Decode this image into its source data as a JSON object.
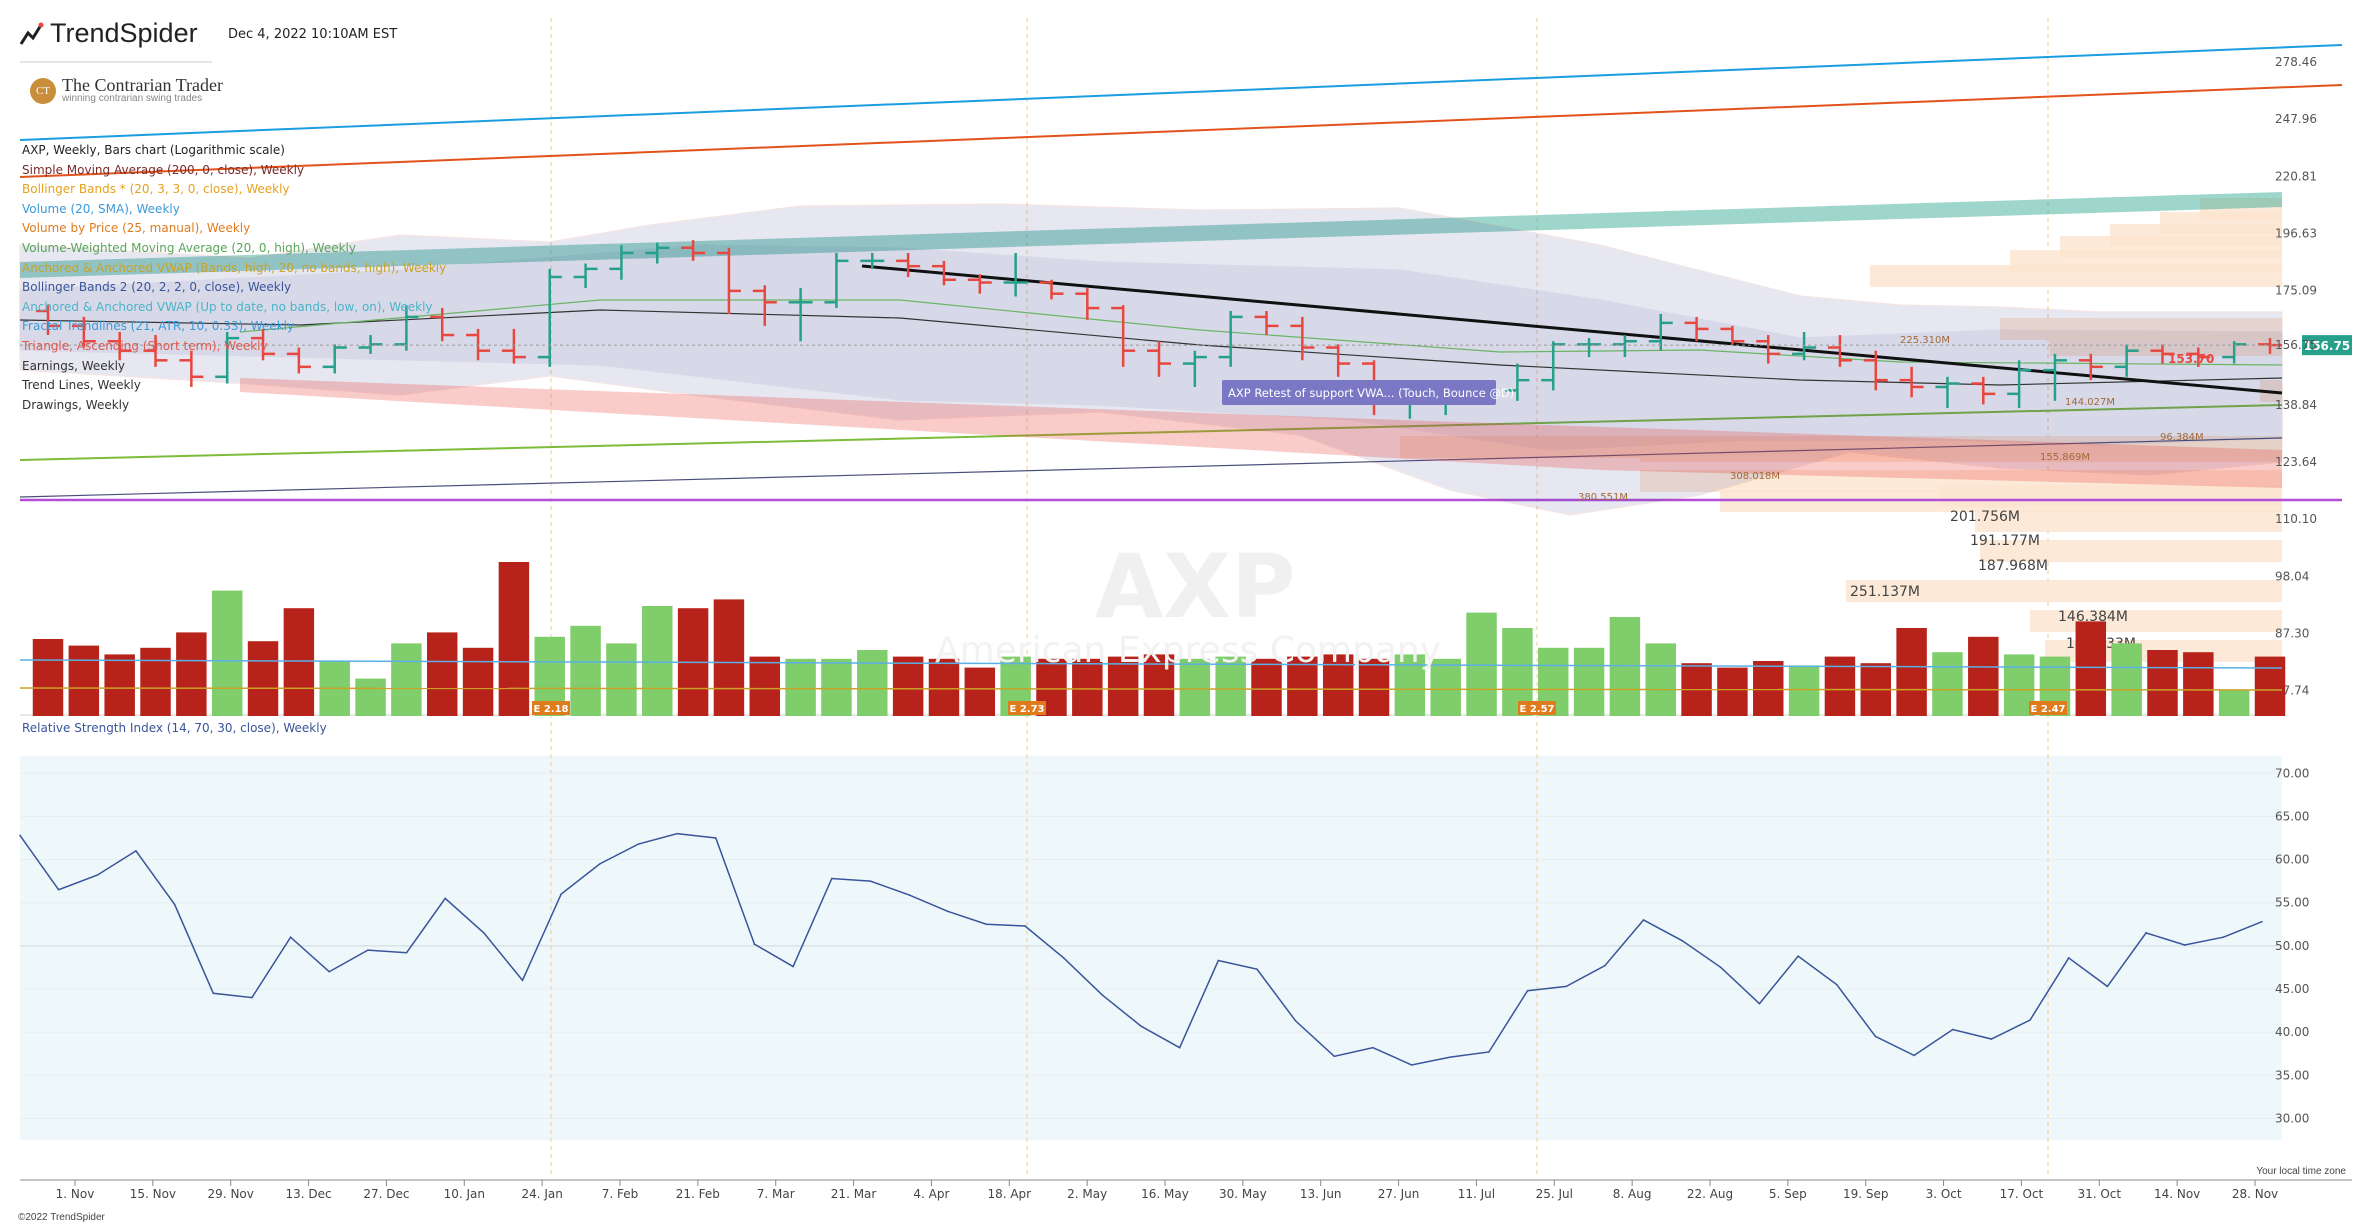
{
  "header": {
    "brand": "TrendSpider",
    "date": "Dec 4, 2022 10:10AM EST",
    "partner": "The Contrarian Trader",
    "partner_tagline": "winning contrarian swing trades",
    "watermark_symbol": "AXP",
    "watermark_name": "American Express Company"
  },
  "legend": [
    {
      "text": "AXP, Weekly, Bars chart (Logarithmic scale)",
      "color": "#222222"
    },
    {
      "text": "Simple Moving Average (200, 0, close), Weekly",
      "color": "#7a2a2a"
    },
    {
      "text": "Bollinger Bands * (20, 3, 3, 0, close), Weekly",
      "color": "#e6a21c"
    },
    {
      "text": "Volume (20, SMA), Weekly",
      "color": "#3a9ad9"
    },
    {
      "text": "Volume by Price (25, manual), Weekly",
      "color": "#e07b1d"
    },
    {
      "text": "Volume-Weighted Moving Average (20, 0, high), Weekly",
      "color": "#5aa55a"
    },
    {
      "text": "Anchored & Anchored VWAP (Bands, high, 20, no bands, high), Weekly",
      "color": "#c9a227"
    },
    {
      "text": "Bollinger Bands 2 (20, 2, 2, 0, close), Weekly",
      "color": "#39549a"
    },
    {
      "text": "Anchored & Anchored VWAP (Up to date, no bands, low, on), Weekly",
      "color": "#4bb3c7"
    },
    {
      "text": "Fractal Trendlines (21, ATR, 10, 0.33), Weekly",
      "color": "#3a9ad9"
    },
    {
      "text": "Triangle, Ascending (Short term), Weekly",
      "color": "#e05a4f"
    },
    {
      "text": "Earnings, Weekly",
      "color": "#333333"
    },
    {
      "text": "Trend Lines, Weekly",
      "color": "#333333"
    },
    {
      "text": "Drawings, Weekly",
      "color": "#333333"
    }
  ],
  "rsi_title": "Relative Strength Index (14, 70, 30, close), Weekly",
  "footer": "©2022 TrendSpider",
  "tz_note": "Your local time zone",
  "colors": {
    "up": "#26a08a",
    "down": "#e8473f",
    "vol_up": "#80cd6b",
    "vol_down": "#b7231b",
    "rsi_line": "#39549a",
    "rsi_bg": "#eef8fa",
    "vbp": "#fbe5d0",
    "last_price_bg": "#26a08a"
  },
  "chart_data": {
    "type": "bar",
    "symbol": "AXP",
    "scale": "log",
    "price_ticks": [
      278.46,
      247.96,
      220.81,
      196.63,
      175.09,
      156.75,
      138.84,
      123.64,
      110.1,
      98.04,
      87.3,
      77.74
    ],
    "x_ticks": [
      "1. Nov",
      "15. Nov",
      "29. Nov",
      "13. Dec",
      "27. Dec",
      "10. Jan",
      "24. Jan",
      "7. Feb",
      "21. Feb",
      "7. Mar",
      "21. Mar",
      "4. Apr",
      "18. Apr",
      "2. May",
      "16. May",
      "30. May",
      "13. Jun",
      "27. Jun",
      "11. Jul",
      "25. Jul",
      "8. Aug",
      "22. Aug",
      "5. Sep",
      "19. Sep",
      "3. Oct",
      "17. Oct",
      "31. Oct",
      "14. Nov",
      "28. Nov"
    ],
    "last_price": "156.75",
    "price_labels": [
      "153.70"
    ],
    "bars": [
      {
        "o": 168,
        "h": 170,
        "l": 160,
        "c": 163
      },
      {
        "o": 163,
        "h": 166,
        "l": 156,
        "c": 158
      },
      {
        "o": 158,
        "h": 161,
        "l": 152,
        "c": 155
      },
      {
        "o": 155,
        "h": 160,
        "l": 150,
        "c": 152
      },
      {
        "o": 152,
        "h": 155,
        "l": 144,
        "c": 147
      },
      {
        "o": 147,
        "h": 161,
        "l": 145,
        "c": 159
      },
      {
        "o": 159,
        "h": 162,
        "l": 152,
        "c": 154
      },
      {
        "o": 154,
        "h": 156,
        "l": 148,
        "c": 150
      },
      {
        "o": 150,
        "h": 157,
        "l": 148,
        "c": 156
      },
      {
        "o": 156,
        "h": 160,
        "l": 154,
        "c": 157
      },
      {
        "o": 157,
        "h": 170,
        "l": 155,
        "c": 166
      },
      {
        "o": 166,
        "h": 169,
        "l": 158,
        "c": 160
      },
      {
        "o": 160,
        "h": 162,
        "l": 152,
        "c": 155
      },
      {
        "o": 155,
        "h": 162,
        "l": 151,
        "c": 153
      },
      {
        "o": 153,
        "h": 183,
        "l": 150,
        "c": 180
      },
      {
        "o": 180,
        "h": 185,
        "l": 176,
        "c": 183
      },
      {
        "o": 183,
        "h": 192,
        "l": 179,
        "c": 189
      },
      {
        "o": 189,
        "h": 193,
        "l": 185,
        "c": 191
      },
      {
        "o": 191,
        "h": 194,
        "l": 186,
        "c": 189
      },
      {
        "o": 189,
        "h": 191,
        "l": 167,
        "c": 175
      },
      {
        "o": 175,
        "h": 177,
        "l": 163,
        "c": 171
      },
      {
        "o": 171,
        "h": 176,
        "l": 158,
        "c": 171
      },
      {
        "o": 171,
        "h": 189,
        "l": 169,
        "c": 186
      },
      {
        "o": 186,
        "h": 189,
        "l": 183,
        "c": 186
      },
      {
        "o": 186,
        "h": 189,
        "l": 180,
        "c": 184
      },
      {
        "o": 184,
        "h": 186,
        "l": 177,
        "c": 179
      },
      {
        "o": 179,
        "h": 181,
        "l": 174,
        "c": 178
      },
      {
        "o": 178,
        "h": 189,
        "l": 173,
        "c": 178
      },
      {
        "o": 178,
        "h": 179,
        "l": 172,
        "c": 174
      },
      {
        "o": 174,
        "h": 176,
        "l": 165,
        "c": 169
      },
      {
        "o": 169,
        "h": 170,
        "l": 150,
        "c": 155
      },
      {
        "o": 155,
        "h": 158,
        "l": 147,
        "c": 151
      },
      {
        "o": 151,
        "h": 155,
        "l": 144,
        "c": 153
      },
      {
        "o": 153,
        "h": 168,
        "l": 150,
        "c": 166
      },
      {
        "o": 166,
        "h": 168,
        "l": 160,
        "c": 163
      },
      {
        "o": 163,
        "h": 166,
        "l": 152,
        "c": 156
      },
      {
        "o": 156,
        "h": 157,
        "l": 147,
        "c": 151
      },
      {
        "o": 151,
        "h": 152,
        "l": 136,
        "c": 140
      },
      {
        "o": 140,
        "h": 144,
        "l": 135,
        "c": 141
      },
      {
        "o": 141,
        "h": 146,
        "l": 136,
        "c": 142
      },
      {
        "o": 142,
        "h": 145,
        "l": 140,
        "c": 143
      },
      {
        "o": 143,
        "h": 151,
        "l": 140,
        "c": 146
      },
      {
        "o": 146,
        "h": 158,
        "l": 143,
        "c": 157
      },
      {
        "o": 157,
        "h": 159,
        "l": 153,
        "c": 157
      },
      {
        "o": 157,
        "h": 160,
        "l": 153,
        "c": 158
      },
      {
        "o": 158,
        "h": 167,
        "l": 155,
        "c": 164
      },
      {
        "o": 164,
        "h": 166,
        "l": 158,
        "c": 162
      },
      {
        "o": 162,
        "h": 163,
        "l": 157,
        "c": 158
      },
      {
        "o": 158,
        "h": 160,
        "l": 151,
        "c": 154
      },
      {
        "o": 154,
        "h": 161,
        "l": 152,
        "c": 156
      },
      {
        "o": 156,
        "h": 160,
        "l": 150,
        "c": 152
      },
      {
        "o": 152,
        "h": 155,
        "l": 143,
        "c": 146
      },
      {
        "o": 146,
        "h": 150,
        "l": 141,
        "c": 144
      },
      {
        "o": 144,
        "h": 147,
        "l": 138,
        "c": 145
      },
      {
        "o": 145,
        "h": 147,
        "l": 139,
        "c": 142
      },
      {
        "o": 142,
        "h": 152,
        "l": 138,
        "c": 149
      },
      {
        "o": 149,
        "h": 154,
        "l": 140,
        "c": 152
      },
      {
        "o": 152,
        "h": 154,
        "l": 146,
        "c": 150
      },
      {
        "o": 150,
        "h": 157,
        "l": 147,
        "c": 155
      },
      {
        "o": 155,
        "h": 157,
        "l": 151,
        "c": 154
      },
      {
        "o": 154,
        "h": 156,
        "l": 150,
        "c": 153
      },
      {
        "o": 153,
        "h": 158,
        "l": 151,
        "c": 157
      },
      {
        "o": 157,
        "h": 159,
        "l": 154,
        "c": 156.75
      }
    ],
    "volume": [
      3.5,
      3.2,
      2.8,
      3.1,
      3.8,
      5.7,
      3.4,
      4.9,
      2.5,
      1.7,
      3.3,
      3.8,
      3.1,
      7.0,
      3.6,
      4.1,
      3.3,
      5.0,
      4.9,
      5.3,
      2.7,
      2.6,
      2.6,
      3.0,
      2.7,
      2.6,
      2.2,
      2.7,
      2.6,
      2.6,
      2.7,
      2.8,
      2.6,
      2.7,
      2.6,
      2.7,
      2.8,
      2.6,
      2.8,
      2.6,
      4.7,
      4.0,
      3.1,
      3.1,
      4.5,
      3.3,
      2.4,
      2.2,
      2.5,
      2.3,
      2.7,
      2.4,
      4.0,
      2.9,
      3.6,
      2.8,
      2.7,
      4.3,
      3.3,
      3.0,
      2.9,
      1.2,
      2.7
    ],
    "volume_labels": [
      "201.756M",
      "191.177M",
      "187.968M",
      "251.137M",
      "146.384M",
      "142.433M",
      "380.551M",
      "308.018M",
      "225.310M",
      "144.027M",
      "96.384M",
      "155.869M"
    ],
    "earnings": [
      "E 2.18",
      "E 2.73",
      "E 2.57",
      "E 2.47"
    ],
    "annotation": "AXP Retest of support VWA... (Touch, Bounce @D)",
    "rsi_ticks": [
      70.0,
      65.0,
      60.0,
      55.0,
      50.0,
      45.0,
      40.0,
      35.0,
      30.0
    ],
    "rsi": [
      62.8,
      56.5,
      58.2,
      61.0,
      54.8,
      44.5,
      44.0,
      51.0,
      47.0,
      49.5,
      49.2,
      55.5,
      51.5,
      46.0,
      56.0,
      59.5,
      61.8,
      63.0,
      62.5,
      50.2,
      47.6,
      57.8,
      57.5,
      55.9,
      54.0,
      52.5,
      52.3,
      48.6,
      44.3,
      40.7,
      38.2,
      48.3,
      47.3,
      41.3,
      37.2,
      38.2,
      36.2,
      37.1,
      37.7,
      44.8,
      45.3,
      47.7,
      53.0,
      50.6,
      47.5,
      43.3,
      48.8,
      45.5,
      39.5,
      37.3,
      40.3,
      39.2,
      41.4,
      48.6,
      45.3,
      51.5,
      50.1,
      51.0,
      52.8
    ]
  }
}
